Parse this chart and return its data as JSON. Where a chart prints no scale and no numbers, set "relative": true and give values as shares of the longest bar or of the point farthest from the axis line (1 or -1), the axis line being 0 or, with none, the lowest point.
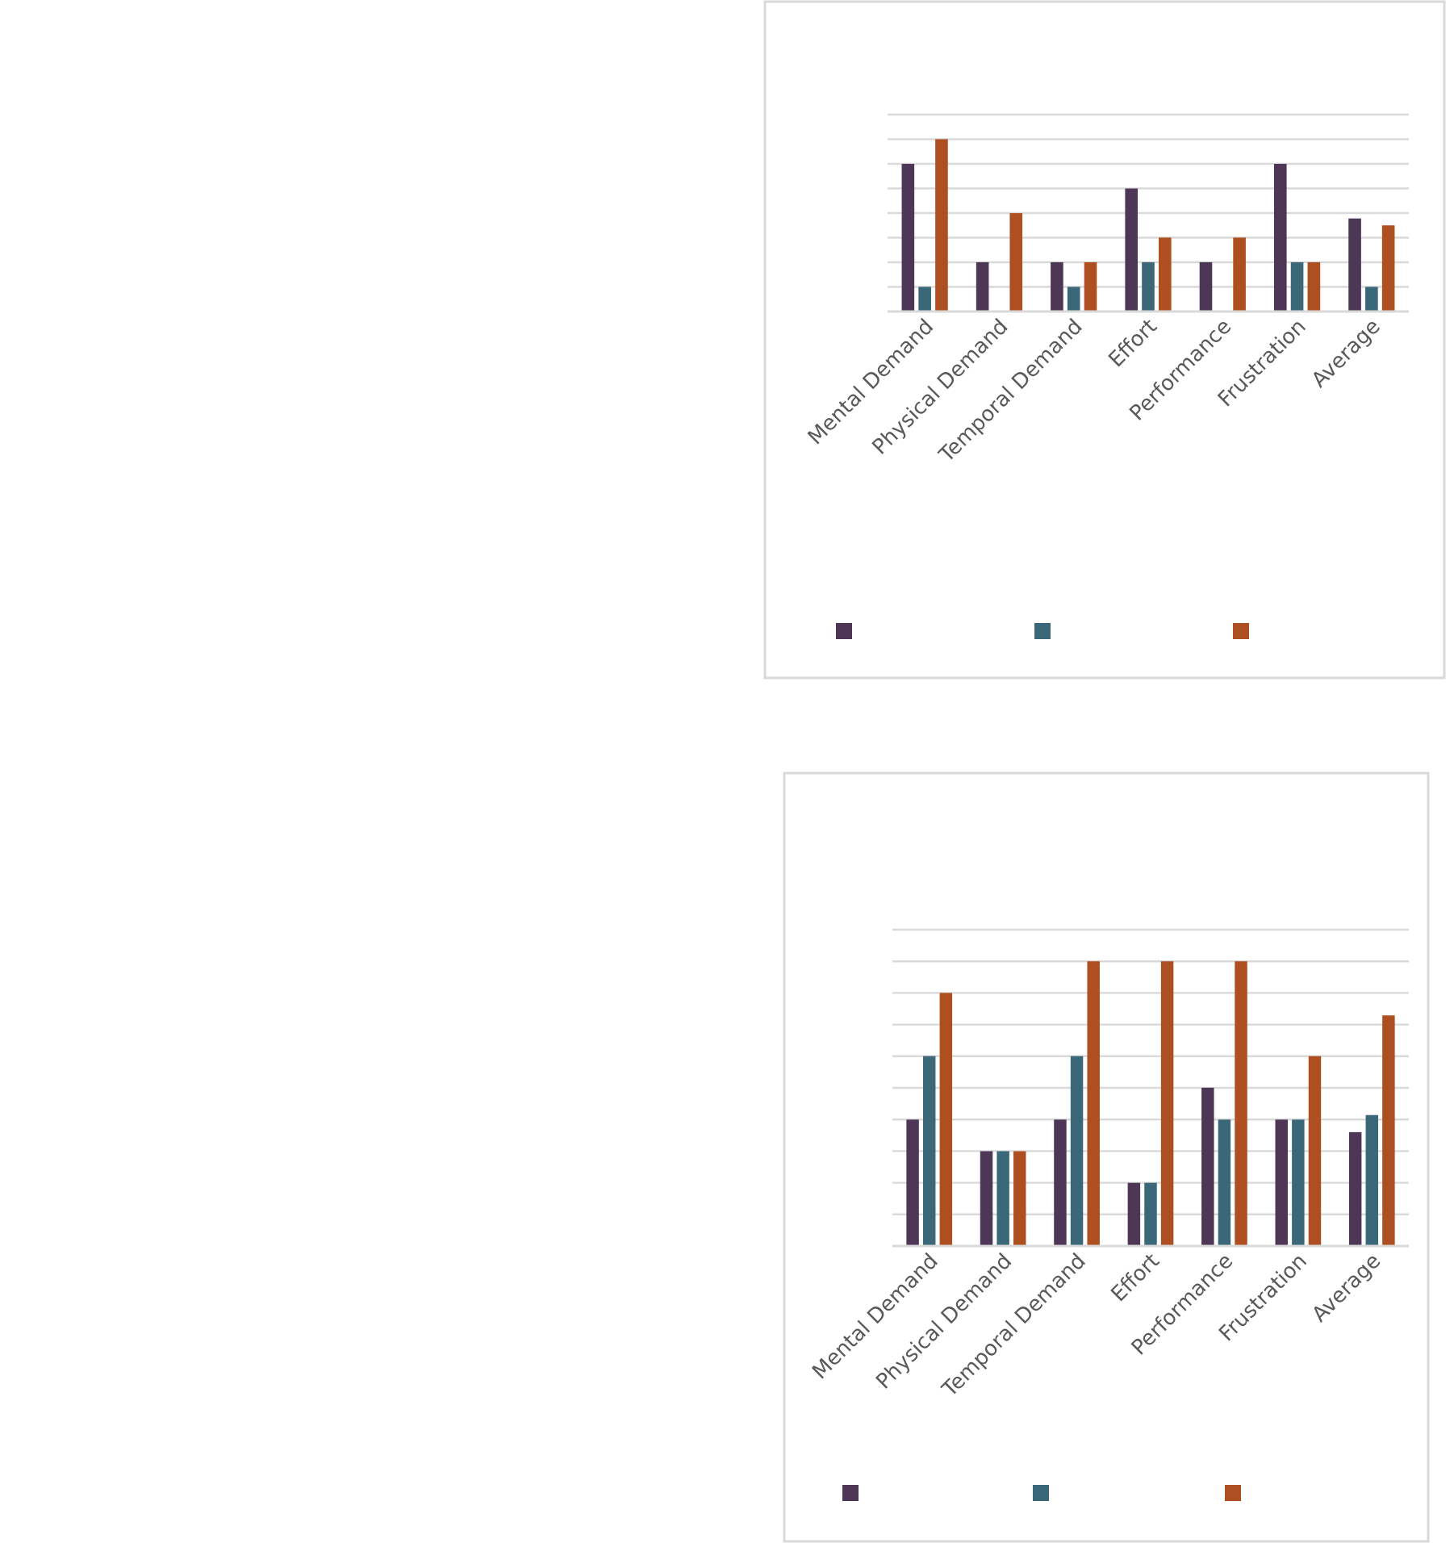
{
  "chart_data": [
    {
      "type": "bar",
      "relative": true,
      "grid": "y",
      "categories": [
        "Mental Demand",
        "Physical Demand",
        "Temporal Demand",
        "Effort",
        "Performance",
        "Frustration",
        "Average"
      ],
      "series": [
        {
          "color": "#4e3657",
          "values": [
            0.857,
            0.286,
            0.286,
            0.714,
            0.286,
            0.857,
            0.54
          ]
        },
        {
          "color": "#3a6878",
          "values": [
            0.143,
            0,
            0.143,
            0.286,
            0,
            0.286,
            0.143
          ]
        },
        {
          "color": "#ae4f21",
          "values": [
            1,
            0.571,
            0.286,
            0.429,
            0.429,
            0.286,
            0.5
          ]
        }
      ]
    },
    {
      "type": "bar",
      "relative": true,
      "grid": "y",
      "categories": [
        "Mental Demand",
        "Physical Demand",
        "Temporal Demand",
        "Effort",
        "Performance",
        "Frustration",
        "Average"
      ],
      "series": [
        {
          "color": "#4e3657",
          "values": [
            0.444,
            0.333,
            0.444,
            0.222,
            0.556,
            0.444,
            0.4
          ]
        },
        {
          "color": "#3a6878",
          "values": [
            0.667,
            0.333,
            0.667,
            0.222,
            0.444,
            0.444,
            0.46
          ]
        },
        {
          "color": "#ae4f21",
          "values": [
            0.889,
            0.333,
            1,
            1,
            1,
            0.667,
            0.81
          ]
        }
      ]
    }
  ]
}
